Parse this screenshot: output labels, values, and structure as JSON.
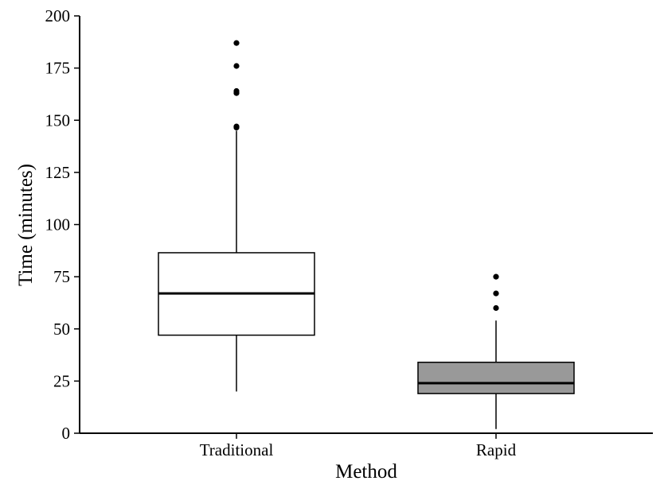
{
  "chart_data": {
    "type": "box",
    "title": "",
    "xlabel": "Method",
    "ylabel": "Time (minutes)",
    "ylim": [
      0,
      200
    ],
    "yticks": [
      0,
      25,
      50,
      75,
      100,
      125,
      150,
      175,
      200
    ],
    "grid": false,
    "categories": [
      "Traditional",
      "Rapid"
    ],
    "boxes": [
      {
        "category": "Traditional",
        "whisker_low": 20,
        "q1": 47,
        "median": 67,
        "q3": 86.5,
        "whisker_high": 145,
        "outliers": [
          146.5,
          147,
          163,
          164,
          176,
          187
        ],
        "fill": "#ffffff"
      },
      {
        "category": "Rapid",
        "whisker_low": 2,
        "q1": 19,
        "median": 24,
        "q3": 34,
        "whisker_high": 54,
        "outliers": [
          60,
          67,
          75
        ],
        "fill": "#999999"
      }
    ]
  }
}
